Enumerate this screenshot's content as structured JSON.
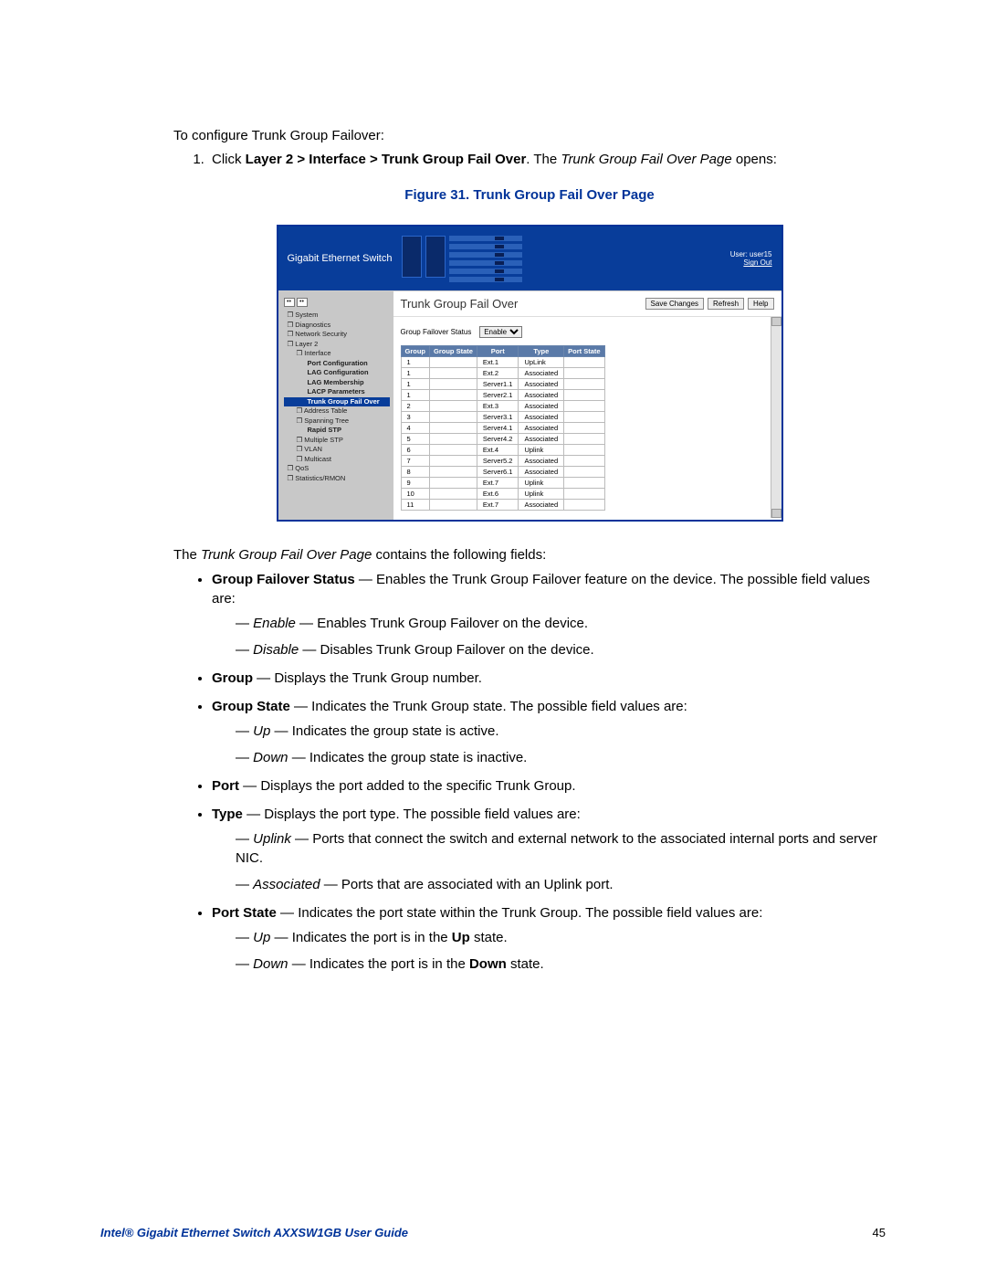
{
  "intro": "To configure Trunk Group Failover:",
  "step1_prefix": "Click ",
  "step1_bold": "Layer 2 > Interface > Trunk Group Fail Over",
  "step1_mid": ". The ",
  "step1_italic": "Trunk Group Fail Over Page",
  "step1_suffix": " opens:",
  "figure_caption": "Figure 31. Trunk Group Fail Over Page",
  "screenshot": {
    "brand": "Gigabit Ethernet Switch",
    "user_label": "User: user15",
    "signout": "Sign Out",
    "title": "Trunk Group Fail Over",
    "buttons": {
      "save": "Save Changes",
      "refresh": "Refresh",
      "help": "Help"
    },
    "tree": [
      {
        "lvl": "l1",
        "t": "❐ System"
      },
      {
        "lvl": "l1",
        "t": "❐ Diagnostics"
      },
      {
        "lvl": "l1",
        "t": "❐ Network Security"
      },
      {
        "lvl": "l1",
        "t": "❐ Layer 2"
      },
      {
        "lvl": "l2",
        "t": "❐ Interface"
      },
      {
        "lvl": "l3",
        "t": "Port Configuration"
      },
      {
        "lvl": "l3",
        "t": "LAG Configuration"
      },
      {
        "lvl": "l3",
        "t": "LAG Membership"
      },
      {
        "lvl": "l3",
        "t": "LACP Parameters"
      },
      {
        "lvl": "l3 sel",
        "t": "Trunk Group Fail Over"
      },
      {
        "lvl": "l2",
        "t": "❐ Address Table"
      },
      {
        "lvl": "l2",
        "t": "❐ Spanning Tree"
      },
      {
        "lvl": "l3",
        "t": "Rapid STP"
      },
      {
        "lvl": "l2",
        "t": "❐ Multiple STP"
      },
      {
        "lvl": "l2",
        "t": "❐ VLAN"
      },
      {
        "lvl": "l2",
        "t": "❐ Multicast"
      },
      {
        "lvl": "l1",
        "t": "❐ QoS"
      },
      {
        "lvl": "l1",
        "t": "❐ Statistics/RMON"
      }
    ],
    "status_label": "Group Failover Status",
    "status_value": "Enable",
    "columns": [
      "Group",
      "Group State",
      "Port",
      "Type",
      "Port State"
    ],
    "rows": [
      [
        "1",
        "",
        "Ext.1",
        "UpLink",
        ""
      ],
      [
        "1",
        "",
        "Ext.2",
        "Associated",
        ""
      ],
      [
        "1",
        "",
        "Server1.1",
        "Associated",
        ""
      ],
      [
        "1",
        "",
        "Server2.1",
        "Associated",
        ""
      ],
      [
        "2",
        "",
        "Ext.3",
        "Associated",
        ""
      ],
      [
        "3",
        "",
        "Server3.1",
        "Associated",
        ""
      ],
      [
        "4",
        "",
        "Server4.1",
        "Associated",
        ""
      ],
      [
        "5",
        "",
        "Server4.2",
        "Associated",
        ""
      ],
      [
        "6",
        "",
        "Ext.4",
        "Uplink",
        ""
      ],
      [
        "7",
        "",
        "Server5.2",
        "Associated",
        ""
      ],
      [
        "8",
        "",
        "Server6.1",
        "Associated",
        ""
      ],
      [
        "9",
        "",
        "Ext.7",
        "Uplink",
        ""
      ],
      [
        "10",
        "",
        "Ext.6",
        "Uplink",
        ""
      ],
      [
        "11",
        "",
        "Ext.7",
        "Associated",
        ""
      ]
    ]
  },
  "after_intro_pre": "The ",
  "after_intro_it": "Trunk Group Fail Over Page",
  "after_intro_post": " contains the following fields:",
  "f_status_b": "Group Failover Status",
  "f_status_t": " — Enables the Trunk Group Failover feature on the device. The possible field values are:",
  "f_status_en_it": "Enable",
  "f_status_en_t": " — Enables Trunk Group Failover on the device.",
  "f_status_di_it": "Disable",
  "f_status_di_t": " — Disables Trunk Group Failover on the device.",
  "f_group_b": "Group",
  "f_group_t": " — Displays the Trunk Group number.",
  "f_gstate_b": "Group State",
  "f_gstate_t": " — Indicates the Trunk Group state. The possible field values are:",
  "f_gstate_up_it": "Up",
  "f_gstate_up_t": " — Indicates the group state is active.",
  "f_gstate_dn_it": "Down",
  "f_gstate_dn_t": " — Indicates the group state is inactive.",
  "f_port_b": "Port",
  "f_port_t": " — Displays the port added to the specific Trunk Group.",
  "f_type_b": "Type",
  "f_type_t": " — Displays the port type. The possible field values are:",
  "f_type_up_it": "Uplink",
  "f_type_up_t": " — Ports that connect the switch and external network to the associated internal ports and server NIC.",
  "f_type_as_it": "Associated",
  "f_type_as_t": " — Ports that are associated with an Uplink port.",
  "f_pstate_b": "Port State",
  "f_pstate_t": " — Indicates the port state within the Trunk Group. The possible field values are:",
  "f_pstate_up_it": "Up",
  "f_pstate_up_t1": " — Indicates the port is in the ",
  "f_pstate_up_b": "Up",
  "f_pstate_up_t2": " state.",
  "f_pstate_dn_it": "Down",
  "f_pstate_dn_t1": " — Indicates the port is in the ",
  "f_pstate_dn_b": "Down",
  "f_pstate_dn_t2": " state.",
  "footer_title": "Intel® Gigabit Ethernet Switch AXXSW1GB User Guide",
  "footer_page": "45"
}
